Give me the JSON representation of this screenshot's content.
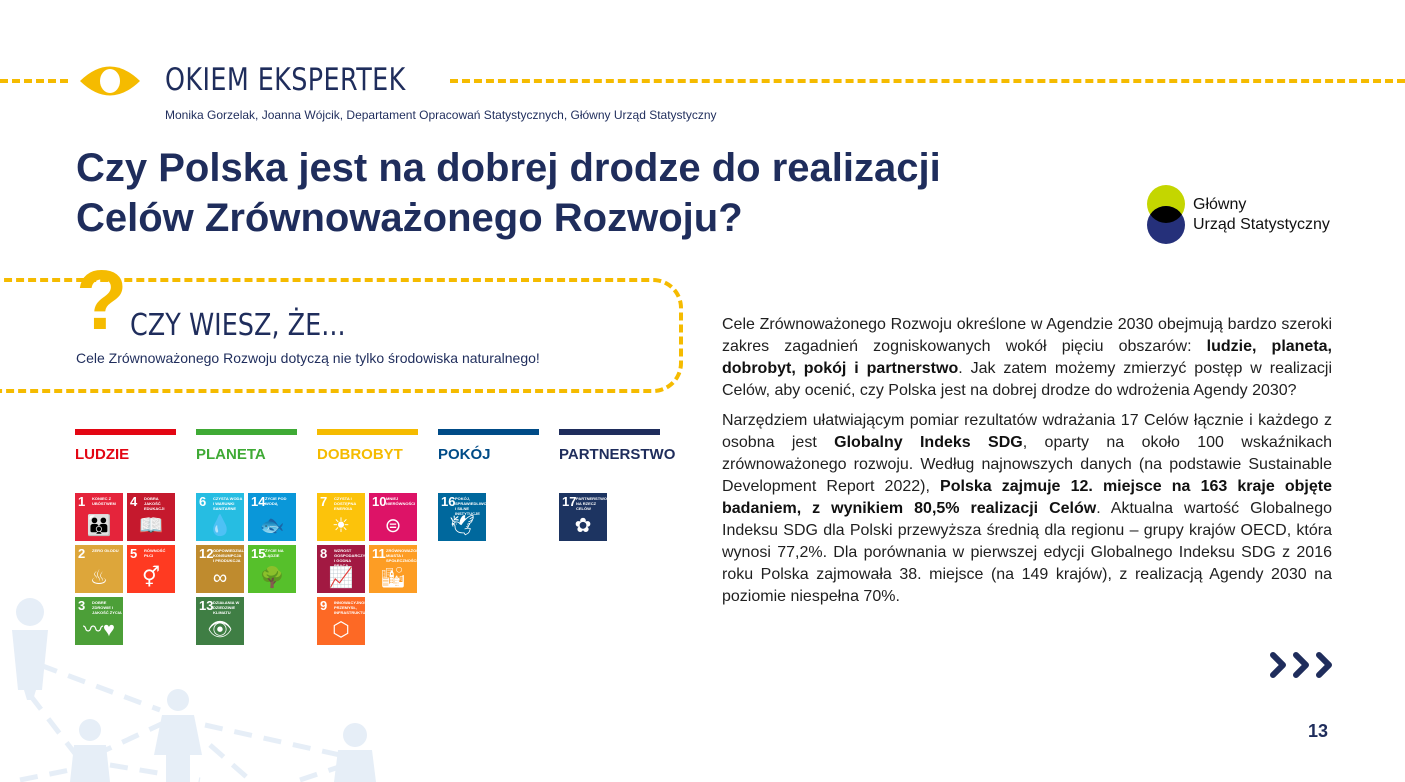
{
  "header": {
    "section_title": "OKIEM EKSPERTEK",
    "authors": "Monika Gorzelak, Joanna Wójcik, Departament Opracowań Statystycznych, Główny Urząd Statystyczny",
    "title_line1": "Czy Polska jest na dobrej drodze do realizacji",
    "title_line2": "Celów Zrównoważonego Rozwoju?"
  },
  "logo": {
    "line1": "Główny",
    "line2": "Urząd Statystyczny",
    "colors": {
      "top": "#c4d600",
      "bottom": "#25307a",
      "overlap": "#000000"
    }
  },
  "quiz": {
    "title": "CZY WIESZ, ŻE...",
    "text": "Cele Zrównoważonego Rozwoju dotyczą nie tylko środowiska naturalnego!"
  },
  "categories": [
    {
      "label": "LUDZIE",
      "color": "#e30613"
    },
    {
      "label": "PLANETA",
      "color": "#3faa35"
    },
    {
      "label": "DOBROBYT",
      "color": "#f5bb00"
    },
    {
      "label": "POKÓJ",
      "color": "#004b87"
    },
    {
      "label": "PARTNERSTWO",
      "color": "#1f2d5c"
    }
  ],
  "goals": [
    {
      "num": "1",
      "label": "Koniec z ubóstwem",
      "color": "#e5243b",
      "icon": "people-icon"
    },
    {
      "num": "2",
      "label": "Zero głodu",
      "color": "#dda63a",
      "icon": "bowl-icon"
    },
    {
      "num": "3",
      "label": "Dobre zdrowie i jakość życia",
      "color": "#4c9f38",
      "icon": "heartbeat-icon"
    },
    {
      "num": "4",
      "label": "Dobra jakość edukacji",
      "color": "#c5192d",
      "icon": "book-icon"
    },
    {
      "num": "5",
      "label": "Równość płci",
      "color": "#ff3a21",
      "icon": "gender-icon"
    },
    {
      "num": "6",
      "label": "Czysta woda i warunki sanitarne",
      "color": "#26bde2",
      "icon": "water-icon"
    },
    {
      "num": "7",
      "label": "Czysta i dostępna energia",
      "color": "#fcc30b",
      "icon": "sun-icon"
    },
    {
      "num": "8",
      "label": "Wzrost gospodarczy i godna praca",
      "color": "#a21942",
      "icon": "growth-icon"
    },
    {
      "num": "9",
      "label": "Innowacyjność, przemysł, infrastruktura",
      "color": "#fd6925",
      "icon": "cubes-icon"
    },
    {
      "num": "10",
      "label": "Mniej nierówności",
      "color": "#dd1367",
      "icon": "equal-icon"
    },
    {
      "num": "11",
      "label": "Zrównoważone miasta i społeczności",
      "color": "#fd9d24",
      "icon": "city-icon"
    },
    {
      "num": "12",
      "label": "Odpowiedzialna konsumpcja i produkcja",
      "color": "#bf8b2e",
      "icon": "infinity-icon"
    },
    {
      "num": "13",
      "label": "Działania w dziedzinie klimatu",
      "color": "#3f7e44",
      "icon": "eye-globe-icon"
    },
    {
      "num": "14",
      "label": "Życie pod wodą",
      "color": "#0a97d9",
      "icon": "fish-icon"
    },
    {
      "num": "15",
      "label": "Życie na lądzie",
      "color": "#56c02b",
      "icon": "tree-icon"
    },
    {
      "num": "16",
      "label": "Pokój, sprawiedliwość i silne instytucje",
      "color": "#00689d",
      "icon": "dove-icon"
    },
    {
      "num": "17",
      "label": "Partnerstwo na rzecz celów",
      "color": "#1d3461",
      "icon": "flower-icon"
    }
  ],
  "body": {
    "p1_a": "Cele Zrównoważonego Rozwoju określone w Agendzie 2030 obejmują bardzo szeroki zakres zagadnień zogniskowanych wokół pięciu obszarów: ",
    "p1_b": "ludzie, planeta, dobrobyt, pokój i partnerstwo",
    "p1_c": ". Jak zatem możemy zmierzyć postęp w realizacji Celów, aby ocenić, czy Polska jest na dobrej drodze do wdrożenia Agendy 2030?",
    "p2_a": "Narzędziem ułatwiającym pomiar rezultatów wdrażania 17 Celów łącznie i każdego z osobna jest ",
    "p2_b": "Globalny Indeks SDG",
    "p2_c": ", oparty na około 100 wskaźnikach zrównoważonego rozwoju. Według najnowszych danych (na podstawie Sustainable Development Report 2022), ",
    "p2_d": "Polska zajmuje 12. miejsce na 163 kraje objęte badaniem, z wynikiem 80,5% realizacji Celów",
    "p2_e": ". Aktualna wartość Globalnego Indeksu SDG dla Polski przewyższa średnią dla regionu – grupy krajów OECD, która wynosi 77,2%. Dla porównania w pierwszej edycji Globalnego Indeksu SDG z 2016 roku Polska zajmowała 38. miejsce (na 149 krajów), z realizacją Agendy 2030 na poziomie niespełna 70%."
  },
  "footer": {
    "page_number": "13",
    "next_icon": "triple-chevron-right-icon"
  },
  "accent": "#f5bb00"
}
